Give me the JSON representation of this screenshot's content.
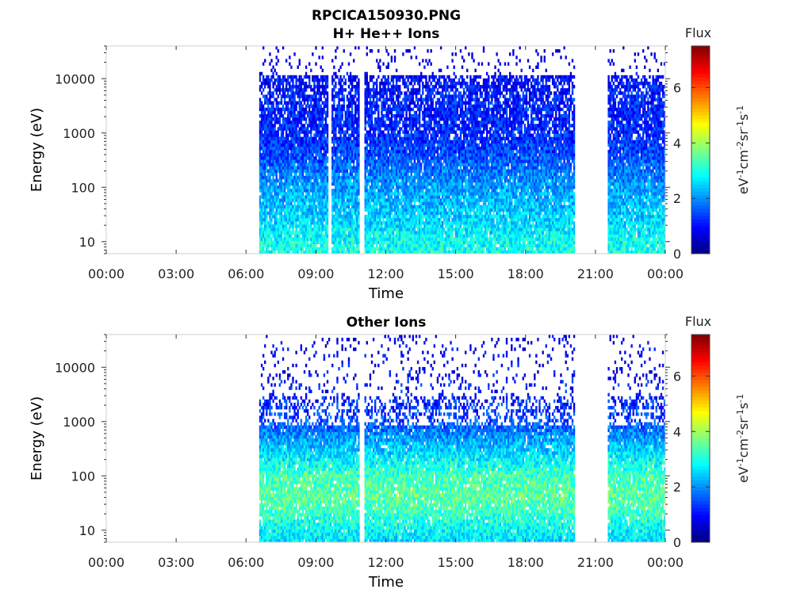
{
  "figure": {
    "title_line1": "RPCICA150930.PNG"
  },
  "chart_data": [
    {
      "type": "heatmap",
      "title": "H+ He++ Ions",
      "xlabel": "Time",
      "ylabel": "Energy (eV)",
      "x_ticks": [
        "00:00",
        "03:00",
        "06:00",
        "09:00",
        "12:00",
        "15:00",
        "18:00",
        "21:00",
        "00:00"
      ],
      "x_range_hours": [
        0,
        24
      ],
      "y_scale": "log",
      "y_range": [
        6,
        40000
      ],
      "y_ticks": [
        10,
        100,
        1000,
        10000
      ],
      "y_tick_labels": [
        "10",
        "100",
        "1000",
        "10000"
      ],
      "colorbar": {
        "label_top": "Flux",
        "units": "eV-1cm-2sr-1s-1",
        "range": [
          0,
          7.5
        ],
        "ticks": [
          0,
          2,
          4,
          6
        ],
        "tick_labels": [
          "0",
          "2",
          "4",
          "6"
        ],
        "colormap": "jet"
      },
      "data_intervals_hours": [
        [
          6.55,
          9.5
        ],
        [
          9.65,
          10.9
        ],
        [
          11.05,
          20.1
        ],
        [
          21.55,
          24
        ]
      ],
      "energy_profile": {
        "energy_eV": [
          6,
          10,
          20,
          40,
          100,
          200,
          500,
          1000,
          2000,
          5000,
          10000,
          15000,
          30000
        ],
        "typical_flux": [
          3.0,
          2.9,
          2.6,
          2.4,
          2.1,
          1.8,
          1.4,
          1.2,
          1.2,
          1.1,
          0.9,
          0.6,
          0.3
        ]
      }
    },
    {
      "type": "heatmap",
      "title": "Other Ions",
      "xlabel": "Time",
      "ylabel": "Energy (eV)",
      "x_ticks": [
        "00:00",
        "03:00",
        "06:00",
        "09:00",
        "12:00",
        "15:00",
        "18:00",
        "21:00",
        "00:00"
      ],
      "x_range_hours": [
        0,
        24
      ],
      "y_scale": "log",
      "y_range": [
        6,
        40000
      ],
      "y_ticks": [
        10,
        100,
        1000,
        10000
      ],
      "y_tick_labels": [
        "10",
        "100",
        "1000",
        "10000"
      ],
      "colorbar": {
        "label_top": "Flux",
        "units": "eV-1cm-2sr-1s-1",
        "range": [
          0,
          7.5
        ],
        "ticks": [
          0,
          2,
          4,
          6
        ],
        "tick_labels": [
          "0",
          "2",
          "4",
          "6"
        ],
        "colormap": "jet"
      },
      "data_intervals_hours": [
        [
          6.55,
          10.9
        ],
        [
          11.05,
          20.1
        ],
        [
          21.55,
          24
        ]
      ],
      "energy_profile": {
        "energy_eV": [
          6,
          10,
          20,
          40,
          100,
          200,
          500,
          1000,
          2000,
          5000,
          10000,
          30000
        ],
        "typical_flux": [
          2.6,
          2.8,
          3.2,
          3.5,
          3.3,
          2.8,
          2.1,
          1.5,
          1.2,
          1.0,
          0.8,
          0.6
        ]
      }
    }
  ]
}
